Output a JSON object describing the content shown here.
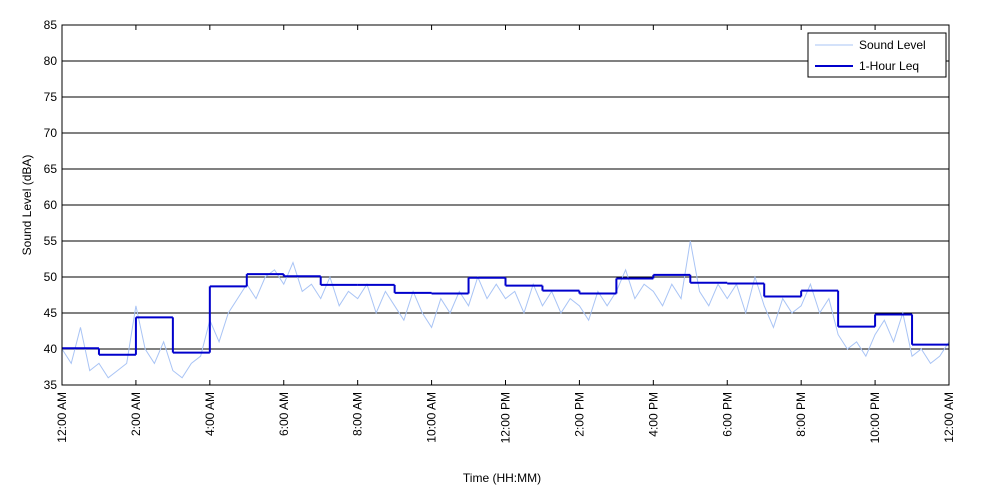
{
  "chart_data": {
    "type": "line",
    "xlabel": "Time (HH:MM)",
    "ylabel": "Sound Level (dBA)",
    "xlim": [
      0,
      24
    ],
    "ylim": [
      35,
      85
    ],
    "xticks": [
      {
        "value": 0,
        "label": "12:00 AM"
      },
      {
        "value": 2,
        "label": "2:00 AM"
      },
      {
        "value": 4,
        "label": "4:00 AM"
      },
      {
        "value": 6,
        "label": "6:00 AM"
      },
      {
        "value": 8,
        "label": "8:00 AM"
      },
      {
        "value": 10,
        "label": "10:00 AM"
      },
      {
        "value": 12,
        "label": "12:00 PM"
      },
      {
        "value": 14,
        "label": "2:00 PM"
      },
      {
        "value": 16,
        "label": "4:00 PM"
      },
      {
        "value": 18,
        "label": "6:00 PM"
      },
      {
        "value": 20,
        "label": "8:00 PM"
      },
      {
        "value": 22,
        "label": "10:00 PM"
      },
      {
        "value": 24,
        "label": "12:00 AM"
      }
    ],
    "yticks": [
      35,
      40,
      45,
      50,
      55,
      60,
      65,
      70,
      75,
      80,
      85
    ],
    "grid": true,
    "legend": "upper right",
    "series": [
      {
        "name": "Sound Level",
        "color": "#a9c4f5",
        "style": "line",
        "x": [
          0,
          0.25,
          0.5,
          0.75,
          1,
          1.25,
          1.5,
          1.75,
          2,
          2.25,
          2.5,
          2.75,
          3,
          3.25,
          3.5,
          3.75,
          4,
          4.25,
          4.5,
          4.75,
          5,
          5.25,
          5.5,
          5.75,
          6,
          6.25,
          6.5,
          6.75,
          7,
          7.25,
          7.5,
          7.75,
          8,
          8.25,
          8.5,
          8.75,
          9,
          9.25,
          9.5,
          9.75,
          10,
          10.25,
          10.5,
          10.75,
          11,
          11.25,
          11.5,
          11.75,
          12,
          12.25,
          12.5,
          12.75,
          13,
          13.25,
          13.5,
          13.75,
          14,
          14.25,
          14.5,
          14.75,
          15,
          15.25,
          15.5,
          15.75,
          16,
          16.25,
          16.5,
          16.75,
          17,
          17.25,
          17.5,
          17.75,
          18,
          18.25,
          18.5,
          18.75,
          19,
          19.25,
          19.5,
          19.75,
          20,
          20.25,
          20.5,
          20.75,
          21,
          21.25,
          21.5,
          21.75,
          22,
          22.25,
          22.5,
          22.75,
          23,
          23.25,
          23.5,
          23.75,
          24
        ],
        "values": [
          40,
          38,
          43,
          37,
          38,
          36,
          37,
          38,
          46,
          40,
          38,
          41,
          37,
          36,
          38,
          39,
          44,
          41,
          45,
          47,
          49,
          47,
          50,
          51,
          49,
          52,
          48,
          49,
          47,
          50,
          46,
          48,
          47,
          49,
          45,
          48,
          46,
          44,
          48,
          45,
          43,
          47,
          45,
          48,
          46,
          50,
          47,
          49,
          47,
          48,
          45,
          49,
          46,
          48,
          45,
          47,
          46,
          44,
          48,
          46,
          48,
          51,
          47,
          49,
          48,
          46,
          49,
          47,
          55,
          48,
          46,
          49,
          47,
          49,
          45,
          50,
          46,
          43,
          47,
          45,
          46,
          49,
          45,
          47,
          42,
          40,
          41,
          39,
          42,
          44,
          41,
          45,
          39,
          40,
          38,
          39,
          41
        ]
      },
      {
        "name": "1-Hour Leq",
        "color": "#0000cc",
        "style": "steps-post",
        "x": [
          0,
          1,
          2,
          3,
          4,
          5,
          6,
          7,
          8,
          9,
          10,
          11,
          12,
          13,
          14,
          15,
          16,
          17,
          18,
          19,
          20,
          21,
          22,
          23
        ],
        "values": [
          40.1,
          39.2,
          44.4,
          39.5,
          48.7,
          50.4,
          50.1,
          48.9,
          48.9,
          47.8,
          47.7,
          49.9,
          48.8,
          48.1,
          47.7,
          49.8,
          50.3,
          49.2,
          49.1,
          47.3,
          48.1,
          43.1,
          44.8,
          40.6
        ]
      }
    ]
  }
}
